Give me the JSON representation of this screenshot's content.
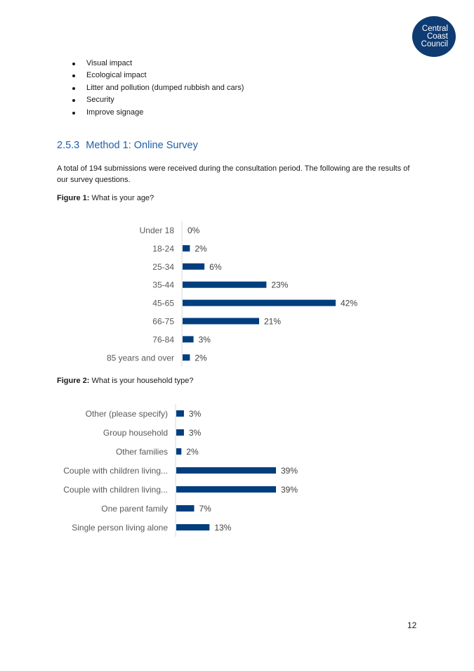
{
  "logo": {
    "lines": [
      "Central",
      "Coast",
      "Council"
    ]
  },
  "bullets": [
    "Visual impact",
    "Ecological impact",
    "Litter and pollution (dumped rubbish and cars)",
    "Security",
    "Improve signage"
  ],
  "section": {
    "number": "2.5.3",
    "title": "Method 1: Online Survey",
    "paragraph": "A total of 194 submissions were received during the consultation period. The following are the results of our survey questions."
  },
  "figure1": {
    "label": "Figure 1:",
    "caption": "What is your age?"
  },
  "figure2": {
    "label": "Figure 2:",
    "caption": "What is your household type?"
  },
  "page_number": "12",
  "colors": {
    "bar": "#003e7e",
    "heading": "#1f5fa8",
    "logo": "#0f3b73"
  },
  "chart_data": [
    {
      "type": "bar",
      "orientation": "horizontal",
      "categories": [
        "Under 18",
        "18-24",
        "25-34",
        "35-44",
        "45-65",
        "66-75",
        "76-84",
        "85 years and over"
      ],
      "values": [
        0,
        2,
        6,
        23,
        42,
        21,
        3,
        2
      ],
      "value_labels": [
        "0%",
        "2%",
        "6%",
        "23%",
        "42%",
        "21%",
        "3%",
        "2%"
      ],
      "unit": "%",
      "xlim": [
        0,
        42
      ],
      "grid": false
    },
    {
      "type": "bar",
      "orientation": "horizontal",
      "categories": [
        "Other (please specify)",
        "Group household",
        "Other families",
        "Couple with children living...",
        "Couple with children living...",
        "One parent family",
        "Single person living alone"
      ],
      "values": [
        3,
        3,
        2,
        39,
        39,
        7,
        13
      ],
      "value_labels": [
        "3%",
        "3%",
        "2%",
        "39%",
        "39%",
        "7%",
        "13%"
      ],
      "unit": "%",
      "xlim": [
        0,
        39
      ],
      "grid": false
    }
  ]
}
